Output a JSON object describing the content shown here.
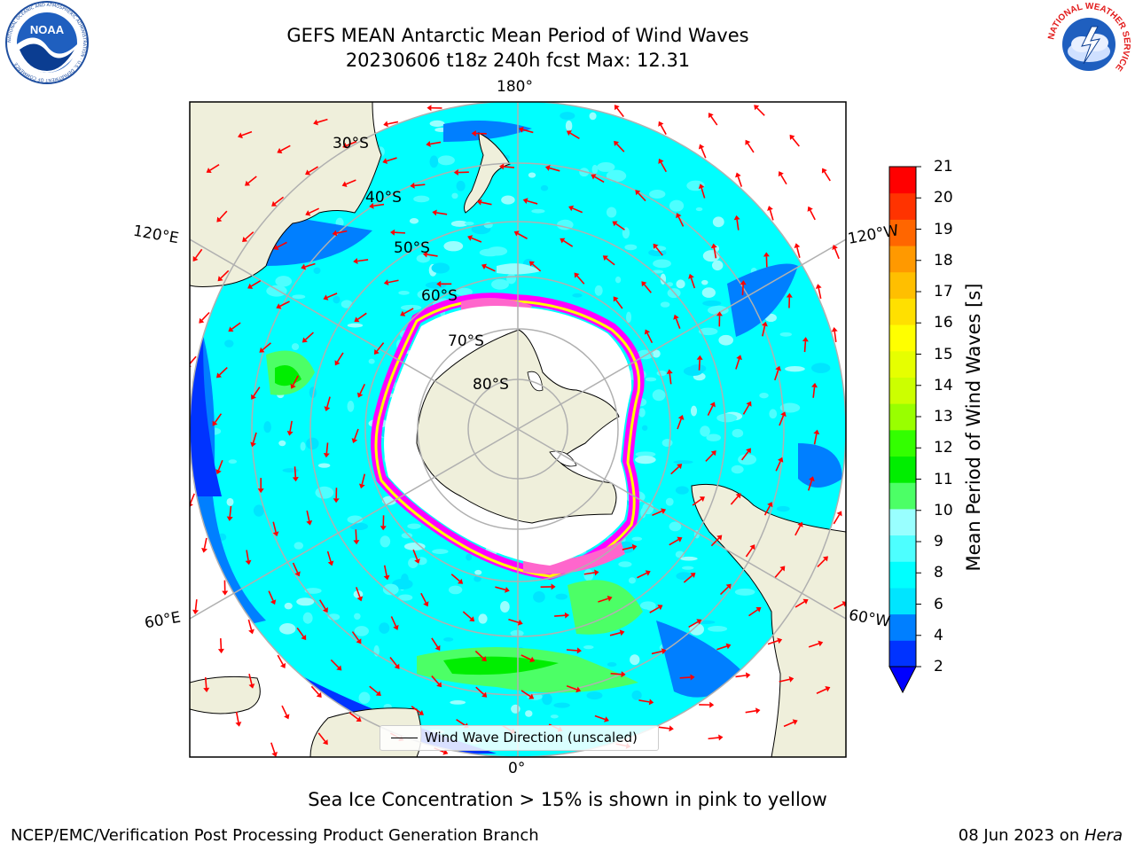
{
  "title": {
    "line1": "GEFS MEAN Antarctic Mean Period of Wind Waves",
    "line2": "20230606 t18z 240h fcst   Max: 12.31"
  },
  "map": {
    "projection": "south-polar-stereographic",
    "lon_labels": {
      "top": "180°",
      "upper_left": "120°E",
      "upper_right": "120°W",
      "lower_left": "60°E",
      "lower_right": "60°W",
      "bottom": "0°"
    },
    "lat_labels": [
      "30°S",
      "40°S",
      "50°S",
      "60°S",
      "70°S",
      "80°S"
    ],
    "legend": "Wind Wave Direction (unscaled)",
    "arrow_color": "#ff0000",
    "land_color": "#efefdb",
    "ocean_base_color": "#00ffff",
    "sea_ice_colors": [
      "#ff00ff",
      "#ff66cc",
      "#ffff00"
    ]
  },
  "colorbar": {
    "label": "Mean Period of Wind Waves [s]",
    "ticks": [
      "2",
      "4",
      "6",
      "8",
      "9",
      "10",
      "11",
      "12",
      "13",
      "14",
      "15",
      "16",
      "17",
      "18",
      "19",
      "20",
      "21"
    ],
    "colors": [
      "#0033ff",
      "#007fff",
      "#00e5ff",
      "#00ffff",
      "#4dffff",
      "#99ffff",
      "#4cff66",
      "#00ee00",
      "#33ff00",
      "#99ff00",
      "#ccff00",
      "#e6ff00",
      "#ffff00",
      "#ffe000",
      "#ffbf00",
      "#ff9900",
      "#ff6600",
      "#ff3300",
      "#ff0000"
    ],
    "extend": "min"
  },
  "subtitle": "Sea Ice Concentration > 15% is shown in pink to yellow",
  "footer": {
    "left": "NCEP/EMC/Verification Post Processing Product Generation Branch",
    "right_date": "08 Jun 2023 on ",
    "right_host": "Hera"
  },
  "logos": {
    "noaa": "NOAA",
    "noaa_ring": "NATIONAL OCEANIC AND ATMOSPHERIC ADMINISTRATION · U.S. DEPARTMENT OF COMMERCE",
    "nws_ring": "NATIONAL WEATHER SERVICE"
  }
}
